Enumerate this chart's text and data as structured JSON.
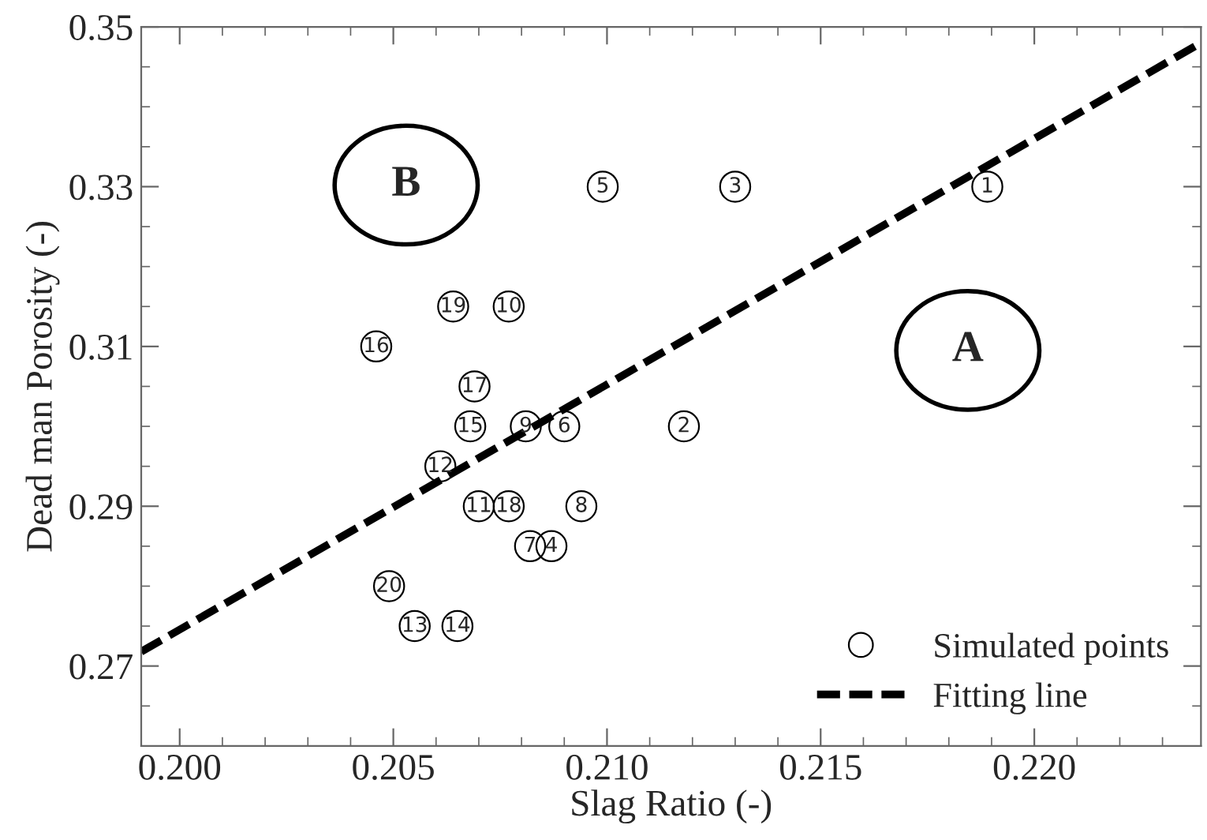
{
  "chart_data": {
    "type": "scatter",
    "xlabel": "Slag Ratio (-)",
    "ylabel": "Dead man Porosity (-)",
    "series": [
      {
        "name": "Simulated points",
        "color": "#000000",
        "marker": "circle",
        "x": [
          0.2189,
          0.2118,
          0.213,
          0.2087,
          0.2099,
          0.209,
          0.2082,
          0.2094,
          0.2081,
          0.2077,
          0.207,
          0.2061,
          0.2055,
          0.2065,
          0.2068,
          0.2046,
          0.2069,
          0.2077,
          0.2064,
          0.2049
        ],
        "values": [
          0.33,
          0.3,
          0.33,
          0.285,
          0.33,
          0.3,
          0.285,
          0.29,
          0.3,
          0.315,
          0.29,
          0.295,
          0.275,
          0.275,
          0.3,
          0.31,
          0.305,
          0.29,
          0.315,
          0.28
        ]
      },
      {
        "name": "Fitting line",
        "type": "line",
        "color": "#000000",
        "line_style": "dashed",
        "x": [
          0.1991,
          0.2081,
          0.2239
        ],
        "values": [
          0.2718,
          0.2994,
          0.348
        ]
      }
    ],
    "annotations": [
      {
        "text": "1",
        "x": 0.2189,
        "y": 0.33
      },
      {
        "text": "2",
        "x": 0.2118,
        "y": 0.3
      },
      {
        "text": "3",
        "x": 0.213,
        "y": 0.33
      },
      {
        "text": "4",
        "x": 0.2087,
        "y": 0.285
      },
      {
        "text": "5",
        "x": 0.2099,
        "y": 0.33
      },
      {
        "text": "6",
        "x": 0.209,
        "y": 0.3
      },
      {
        "text": "7",
        "x": 0.2082,
        "y": 0.285
      },
      {
        "text": "8",
        "x": 0.2094,
        "y": 0.29
      },
      {
        "text": "9",
        "x": 0.2081,
        "y": 0.3
      },
      {
        "text": "10",
        "x": 0.2077,
        "y": 0.315
      },
      {
        "text": "11",
        "x": 0.207,
        "y": 0.29
      },
      {
        "text": "12",
        "x": 0.2061,
        "y": 0.295
      },
      {
        "text": "13",
        "x": 0.2055,
        "y": 0.275
      },
      {
        "text": "14",
        "x": 0.2065,
        "y": 0.275
      },
      {
        "text": "15",
        "x": 0.2068,
        "y": 0.3
      },
      {
        "text": "16",
        "x": 0.2046,
        "y": 0.31
      },
      {
        "text": "17",
        "x": 0.2069,
        "y": 0.305
      },
      {
        "text": "18",
        "x": 0.2077,
        "y": 0.29
      },
      {
        "text": "19",
        "x": 0.2064,
        "y": 0.315
      },
      {
        "text": "20",
        "x": 0.2049,
        "y": 0.28
      },
      "A",
      "B"
    ],
    "xlim": [
      0.1991,
      0.2239
    ],
    "ylim": [
      0.26,
      0.35
    ],
    "xticks": [
      {
        "value": 0.2,
        "label": "0.200"
      },
      0.205,
      {
        "value": 0.21,
        "label": "0.210"
      },
      0.215,
      {
        "value": 0.22,
        "label": "0.220"
      }
    ],
    "yticks": [
      0.27,
      0.29,
      0.31,
      0.33,
      0.35
    ],
    "grid": false,
    "legend": "bottom right"
  }
}
